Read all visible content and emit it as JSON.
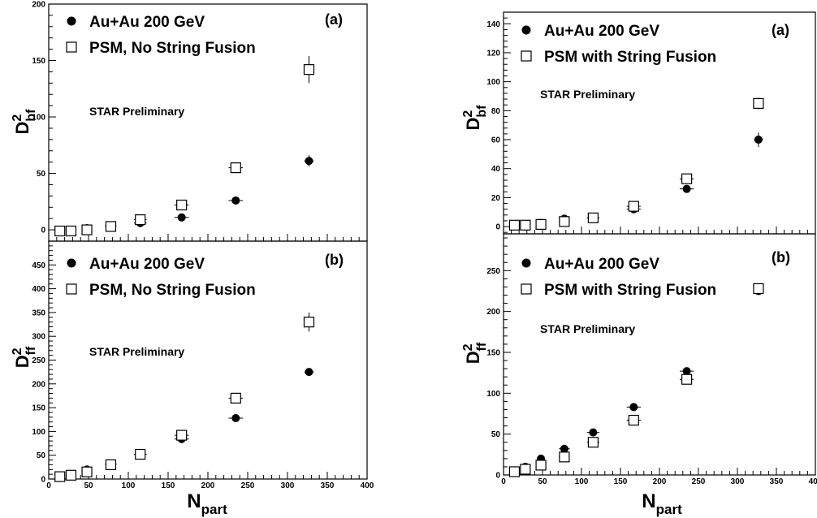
{
  "chart_data": [
    {
      "type": "scatter",
      "panel_label": "(a)",
      "annotation": "STAR Preliminary",
      "ylabel": {
        "base": "D",
        "sup": "2",
        "sub": "bf"
      },
      "xlabel": "",
      "xlim": [
        0,
        400
      ],
      "ylim": [
        -10,
        200
      ],
      "xticks": [],
      "yticks": [
        0,
        50,
        100,
        150,
        200
      ],
      "series": [
        {
          "name": "Au+Au 200 GeV",
          "marker": "filled-circle",
          "x": [
            14,
            28,
            48,
            78,
            115,
            167,
            235,
            327
          ],
          "y": [
            -1,
            -1,
            1.5,
            4,
            6,
            11,
            26,
            61
          ],
          "xerr": [
            3,
            4,
            5,
            7,
            8,
            9,
            9,
            6
          ],
          "yerr": [
            1,
            1,
            1,
            1.5,
            1.5,
            2,
            2,
            5
          ]
        },
        {
          "name": "PSM, No String Fusion",
          "marker": "open-square",
          "x": [
            14,
            28,
            48,
            78,
            115,
            167,
            235,
            327
          ],
          "y": [
            -1,
            -1,
            0,
            3,
            9,
            22,
            55,
            142
          ],
          "xerr": [
            3,
            4,
            5,
            7,
            8,
            9,
            9,
            6
          ],
          "yerr": [
            1,
            1,
            1,
            2,
            2,
            3,
            4,
            12
          ]
        }
      ]
    },
    {
      "type": "scatter",
      "panel_label": "(b)",
      "annotation": "STAR Preliminary",
      "ylabel": {
        "base": "D",
        "sup": "2",
        "sub": "ff"
      },
      "xlabel": "N_part",
      "xlabel_base": "N",
      "xlabel_sub": "part",
      "xlim": [
        0,
        400
      ],
      "ylim": [
        0,
        500
      ],
      "xticks": [
        0,
        50,
        100,
        150,
        200,
        250,
        300,
        350,
        400
      ],
      "yticks": [
        0,
        50,
        100,
        150,
        200,
        250,
        300,
        350,
        400,
        450
      ],
      "series": [
        {
          "name": "Au+Au 200 GeV",
          "marker": "filled-circle",
          "x": [
            14,
            28,
            48,
            78,
            115,
            167,
            235,
            327
          ],
          "y": [
            5,
            10,
            20,
            32,
            52,
            84,
            128,
            225
          ],
          "xerr": [
            3,
            4,
            5,
            7,
            8,
            9,
            9,
            6
          ],
          "yerr": [
            2,
            2,
            3,
            4,
            5,
            5,
            6,
            5
          ]
        },
        {
          "name": "PSM, No String Fusion",
          "marker": "open-square",
          "x": [
            14,
            28,
            48,
            78,
            115,
            167,
            235,
            327
          ],
          "y": [
            5,
            8,
            15,
            30,
            52,
            92,
            170,
            330
          ],
          "xerr": [
            3,
            4,
            5,
            7,
            8,
            9,
            9,
            6
          ],
          "yerr": [
            2,
            2,
            3,
            4,
            5,
            6,
            10,
            20
          ]
        }
      ]
    },
    {
      "type": "scatter",
      "panel_label": "(a)",
      "annotation": "STAR Preliminary",
      "ylabel": {
        "base": "D",
        "sup": "2",
        "sub": "bf"
      },
      "xlabel": "",
      "xlim": [
        0,
        400
      ],
      "ylim": [
        -5,
        148
      ],
      "xticks": [],
      "yticks": [
        0,
        20,
        40,
        60,
        80,
        100,
        120,
        140
      ],
      "series": [
        {
          "name": "Au+Au 200 GeV",
          "marker": "filled-circle",
          "x": [
            14,
            28,
            48,
            78,
            115,
            167,
            235,
            327
          ],
          "y": [
            1.5,
            1.5,
            2.5,
            5.5,
            6,
            12,
            26,
            60
          ],
          "xerr": [
            3,
            4,
            5,
            7,
            8,
            9,
            9,
            6
          ],
          "yerr": [
            1,
            1,
            1,
            1,
            1.5,
            1.5,
            2,
            5
          ]
        },
        {
          "name": "PSM with String Fusion",
          "marker": "open-square",
          "x": [
            14,
            28,
            48,
            78,
            115,
            167,
            235,
            327
          ],
          "y": [
            1,
            1,
            1.5,
            3.5,
            6,
            14,
            33,
            85
          ],
          "xerr": [
            3,
            4,
            5,
            7,
            8,
            9,
            9,
            6
          ],
          "yerr": [
            1,
            1,
            1,
            1.5,
            2,
            2,
            3,
            4
          ]
        }
      ]
    },
    {
      "type": "scatter",
      "panel_label": "(b)",
      "annotation": "STAR Preliminary",
      "ylabel": {
        "base": "D",
        "sup": "2",
        "sub": "ff"
      },
      "xlabel": "N_part",
      "xlabel_base": "N",
      "xlabel_sub": "part",
      "xlim": [
        0,
        400
      ],
      "ylim": [
        0,
        295
      ],
      "xticks": [
        0,
        50,
        100,
        150,
        200,
        250,
        300,
        350,
        400
      ],
      "yticks": [
        0,
        50,
        100,
        150,
        200,
        250
      ],
      "series": [
        {
          "name": "Au+Au 200 GeV",
          "marker": "filled-circle",
          "x": [
            14,
            28,
            48,
            78,
            115,
            167,
            235,
            327
          ],
          "y": [
            5,
            10,
            20,
            32,
            52,
            83,
            127,
            225
          ],
          "xerr": [
            3,
            4,
            5,
            7,
            8,
            9,
            9,
            6
          ],
          "yerr": [
            1,
            1.5,
            2,
            2,
            3,
            3,
            3,
            4
          ]
        },
        {
          "name": "PSM with String Fusion",
          "marker": "open-square",
          "x": [
            14,
            28,
            48,
            78,
            115,
            167,
            235,
            327
          ],
          "y": [
            4,
            7,
            12,
            22,
            40,
            67,
            117,
            228
          ],
          "xerr": [
            3,
            4,
            5,
            7,
            8,
            9,
            9,
            6
          ],
          "yerr": [
            1,
            1.5,
            2,
            2,
            3,
            3,
            4,
            4
          ]
        }
      ]
    }
  ]
}
